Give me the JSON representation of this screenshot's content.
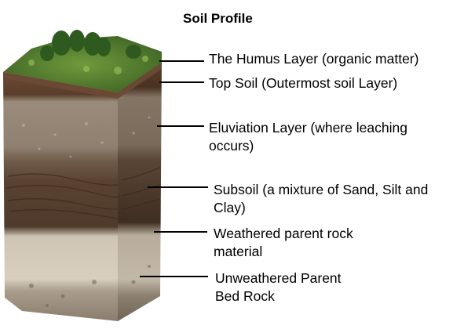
{
  "title": "Soil Profile",
  "layers": [
    {
      "id": "humus",
      "lines": [
        "The Humus Layer (organic matter)"
      ],
      "color": "#4f7a2f"
    },
    {
      "id": "topsoil",
      "lines": [
        "Top Soil (Outermost soil Layer)"
      ],
      "color": "#5a3f2c"
    },
    {
      "id": "eluviation",
      "lines": [
        "Eluviation Layer (where leaching",
        "occurs)"
      ],
      "color": "#8a7b6b"
    },
    {
      "id": "subsoil",
      "lines": [
        "Subsoil (a mixture of Sand, Silt and",
        "Clay)"
      ],
      "color": "#5e4534"
    },
    {
      "id": "weathered",
      "lines": [
        "Weathered parent rock",
        "material"
      ],
      "color": "#d9d0c0"
    },
    {
      "id": "bedrock",
      "lines": [
        "Unweathered Parent",
        "Bed Rock"
      ],
      "color": "#9a8f80"
    }
  ]
}
